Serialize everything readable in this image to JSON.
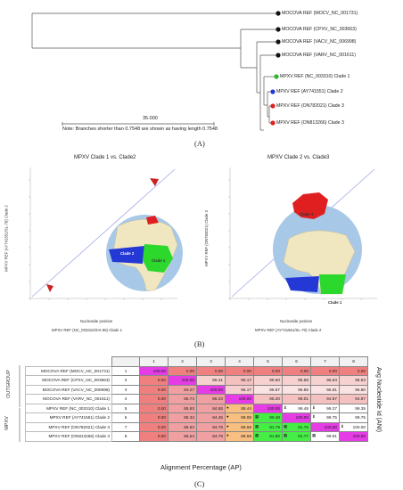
{
  "panels": {
    "a": "(A)",
    "b": "(B)",
    "c": "(C)"
  },
  "tree": {
    "leaves": [
      {
        "label": "MOCOVA REF (MOCV_NC_001731)",
        "color": "#111111"
      },
      {
        "label": "MOCOVA REF (CPXV_NC_003663)",
        "color": "#111111"
      },
      {
        "label": "MOCOVA REF (VACV_NC_006998)",
        "color": "#111111"
      },
      {
        "label": "MOCOVA REF (VARV_NC_001611)",
        "color": "#111111"
      },
      {
        "label": "MPXV REF (NC_003310) Clade 1",
        "color": "#2db52d"
      },
      {
        "label": "MPXV REF (AY741551) Clade 2",
        "color": "#2438d6"
      },
      {
        "label": "MPXV REF (ON782021) Clade 3",
        "color": "#e02020"
      },
      {
        "label": "MPXV REF (ON813266) Clade 3",
        "color": "#e02020"
      }
    ],
    "scale": "35.000",
    "note": "Note: Branches shorter than 0.7548 are shown as having length 0.7548"
  },
  "dotplots": [
    {
      "title": "MPXV Clade 1 vs. Clade2",
      "ylabel": "MPXV REF (AY741551/SL-70) Clade 2",
      "xlabel_top": "Nucleotide position",
      "xlabel": "MPXV REF (NC_003310/ZAI-96) Clade 1",
      "map_labels": [
        "Clade 2",
        "Clade 1"
      ]
    },
    {
      "title": "MPXV Clade 2 vs. Clade3",
      "ylabel": "MPXV REF (ON782021) Clade 3",
      "xlabel_top": "Nucleotide position",
      "xlabel": "MPXV REF (AY741551/SL-70) Clade 2",
      "map_labels": [
        "Clade 3",
        "Clade 2",
        "Clade 1"
      ]
    }
  ],
  "table": {
    "groups": [
      "OUTGROUP",
      "MPXV"
    ],
    "col_headers": [
      "1",
      "2",
      "3",
      "4",
      "5",
      "6",
      "7",
      "8"
    ],
    "rows": [
      {
        "name": "MOCOVA REF (MOCV_NC_001731)",
        "idx": "1",
        "cells": [
          "100.00",
          "0.00",
          "0.00",
          "0.00",
          "0.00",
          "0.00",
          "0.00",
          "0.00"
        ]
      },
      {
        "name": "MOCOVA REF (CPXV_NC_003663)",
        "idx": "2",
        "cells": [
          "0.00",
          "100.00",
          "96.41",
          "95.17",
          "95.60",
          "95.68",
          "95.63",
          "95.63"
        ]
      },
      {
        "name": "MOCOVA REF (VACV_NC_006998)",
        "idx": "3",
        "cells": [
          "0.00",
          "83.27",
          "100.00",
          "96.17",
          "96.87",
          "96.86",
          "96.81",
          "96.80"
        ]
      },
      {
        "name": "MOCOVA REF (VARV_NC_001611)",
        "idx": "4",
        "cells": [
          "0.00",
          "86.74",
          "86.33",
          "100.00",
          "95.20",
          "95.01",
          "94.97",
          "94.97"
        ]
      },
      {
        "name": "MPXV REF (NC_003310) Clade 1",
        "idx": "5",
        "cells": [
          "0.00",
          "85.93",
          "84.65",
          "88.44",
          "100.00",
          "99.48",
          "99.37",
          "99.35"
        ]
      },
      {
        "name": "MPXV REF (AY741551) Clade 2",
        "idx": "6",
        "cells": [
          "0.00",
          "85.34",
          "84.45",
          "88.08",
          "90.48",
          "100.00",
          "99.75",
          "99.75"
        ]
      },
      {
        "name": "MPXV REF (ON782021) Clade 3",
        "idx": "7",
        "cells": [
          "0.00",
          "85.63",
          "84.78",
          "88.58",
          "91.79",
          "91.76",
          "100.00",
          "100.00"
        ]
      },
      {
        "name": "MPXV REF (ON813266) Clade 3",
        "idx": "8",
        "cells": [
          "0.00",
          "85.64",
          "84.79",
          "88.59",
          "91.80",
          "91.77",
          "99.91",
          "100.00"
        ]
      }
    ],
    "right_label": "Avg Nucleotide Id (ANI)",
    "bottom_label": "Alignment Percentage (AP)"
  }
}
